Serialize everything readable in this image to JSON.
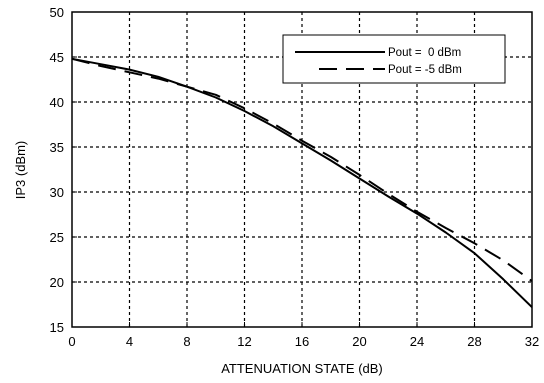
{
  "chart_data": {
    "type": "line",
    "title": "",
    "xlabel": "ATTENUATION STATE (dB)",
    "ylabel": "IP3 (dBm)",
    "xlim": [
      0,
      32
    ],
    "ylim": [
      15,
      50
    ],
    "xticks": [
      0,
      4,
      8,
      12,
      16,
      20,
      24,
      28,
      32
    ],
    "yticks": [
      15,
      20,
      25,
      30,
      35,
      40,
      45,
      50
    ],
    "grid": true,
    "legend_position": "top-right",
    "series": [
      {
        "name": "Pout =  0 dBm",
        "style": "solid",
        "x": [
          0,
          2,
          4,
          6,
          8,
          10,
          12,
          14,
          16,
          18,
          20,
          22,
          24,
          26,
          28,
          30,
          32
        ],
        "y": [
          44.8,
          44.2,
          43.6,
          42.8,
          41.7,
          40.5,
          39.0,
          37.3,
          35.4,
          33.5,
          31.5,
          29.5,
          27.6,
          25.5,
          23.2,
          20.3,
          17.2
        ]
      },
      {
        "name": "Pout = -5 dBm",
        "style": "dashed",
        "x": [
          0,
          2,
          4,
          6,
          8,
          10,
          12,
          14,
          16,
          18,
          20,
          22,
          24,
          26,
          28,
          30,
          32
        ],
        "y": [
          44.8,
          44.0,
          43.3,
          42.6,
          41.7,
          40.8,
          39.3,
          37.6,
          35.7,
          33.9,
          31.9,
          29.8,
          27.8,
          26.0,
          24.3,
          22.4,
          20.1
        ]
      }
    ]
  },
  "colors": {
    "line": "#000000",
    "grid": "#000000",
    "background": "#ffffff"
  }
}
